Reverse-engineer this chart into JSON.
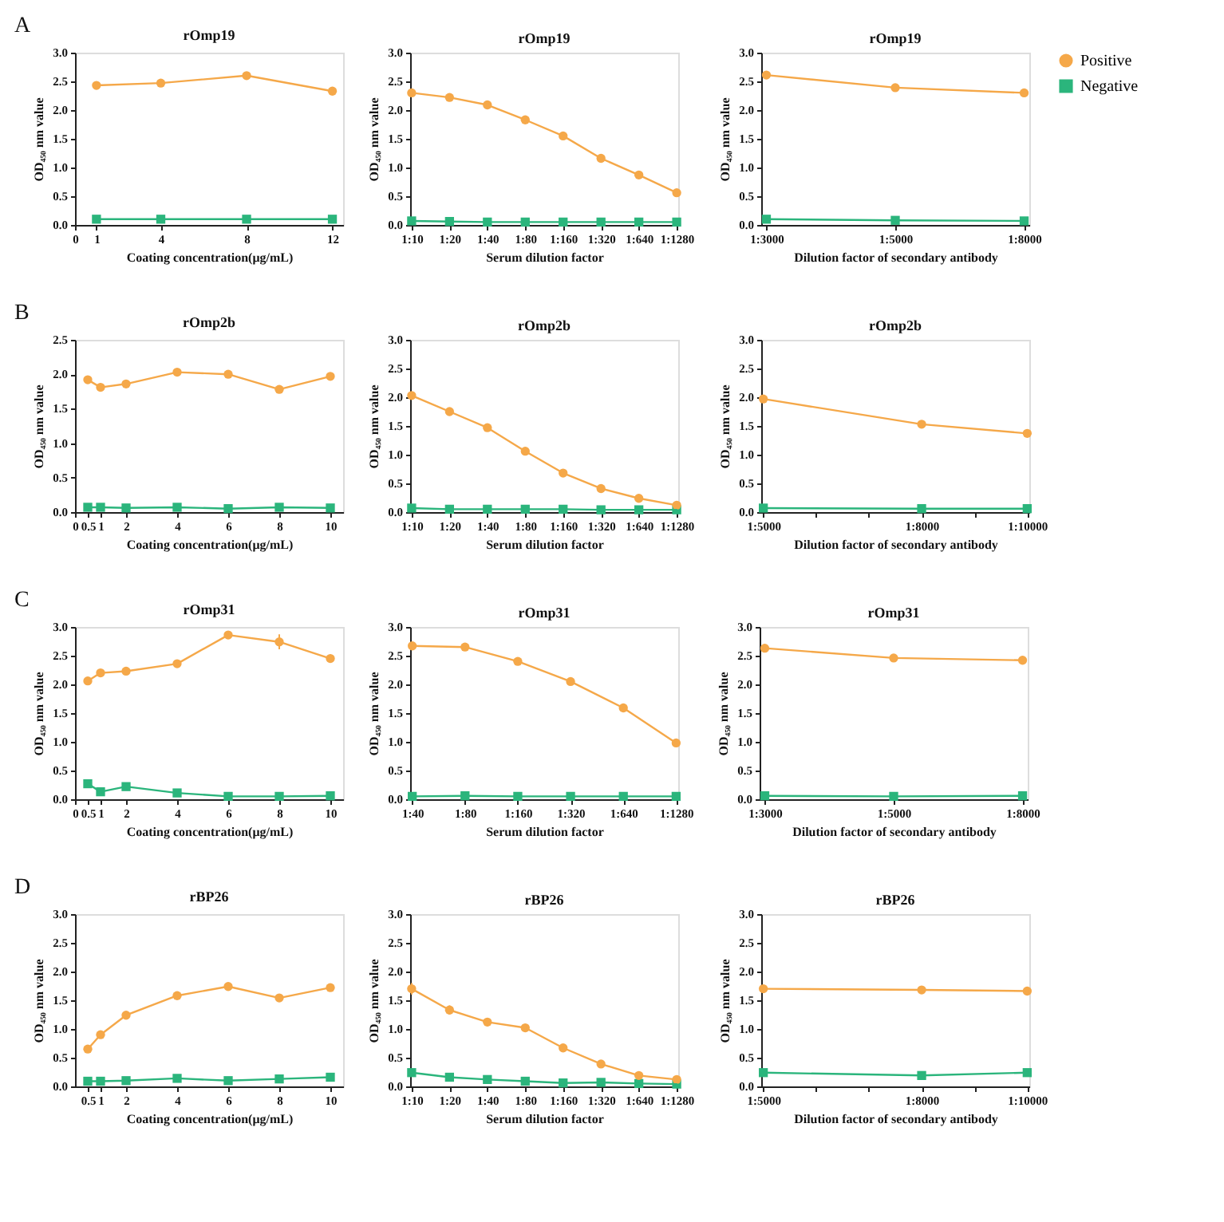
{
  "chart_data": [
    {
      "type": "line",
      "title": "rOmp19",
      "xlabel": "Coating concentration(μg/mL)",
      "ylabel": "OD₄₅₀ nm value",
      "annotations": [
        "A"
      ],
      "xlim": [
        0,
        12.5
      ],
      "xticks": [
        0,
        1,
        4,
        8,
        12
      ],
      "ylim": [
        0,
        3
      ],
      "yticks": [
        {
          "value": 0,
          "label": "0.0"
        },
        {
          "value": 0.5,
          "label": "0.5"
        },
        {
          "value": 1,
          "label": "1.0"
        },
        {
          "value": 1.5,
          "label": "1.5"
        },
        {
          "value": 2,
          "label": "2.0"
        },
        {
          "value": 2.5,
          "label": "2.5"
        },
        {
          "value": 3,
          "label": "3.0"
        }
      ],
      "x": [
        1,
        4,
        8,
        12
      ],
      "series": [
        {
          "color": "#f5a849",
          "marker": "circle",
          "values": [
            2.43,
            2.47,
            2.6,
            2.33
          ],
          "errors": [
            0.06,
            0.05,
            0.06,
            0.05
          ]
        },
        {
          "color": "#2bb57c",
          "marker": "square",
          "values": [
            0.1,
            0.1,
            0.1,
            0.1
          ]
        }
      ]
    },
    {
      "type": "line",
      "title": "rOmp19",
      "xlabel": "Serum dilution factor",
      "ylabel": "OD₄₅₀ nm value",
      "categories": [
        "1:10",
        "1:20",
        "1:40",
        "1:80",
        "1:160",
        "1:320",
        "1:640",
        "1:1280"
      ],
      "ylim": [
        0,
        3
      ],
      "yticks": [
        {
          "value": 0,
          "label": "0.0"
        },
        {
          "value": 0.5,
          "label": "0.5"
        },
        {
          "value": 1,
          "label": "1.0"
        },
        {
          "value": 1.5,
          "label": "1.5"
        },
        {
          "value": 2,
          "label": "2.0"
        },
        {
          "value": 2.5,
          "label": "2.5"
        },
        {
          "value": 3,
          "label": "3.0"
        }
      ],
      "series": [
        {
          "color": "#f5a849",
          "marker": "circle",
          "values": [
            2.3,
            2.22,
            2.09,
            1.83,
            1.55,
            1.16,
            0.87,
            0.56
          ],
          "errors": [
            0.05,
            0.05,
            0.04,
            null,
            null,
            null,
            null,
            null
          ]
        },
        {
          "color": "#2bb57c",
          "marker": "square",
          "values": [
            0.07,
            0.06,
            0.05,
            0.05,
            0.05,
            0.05,
            0.05,
            0.05
          ]
        }
      ]
    },
    {
      "type": "line",
      "title": "rOmp19",
      "xlabel": "Dilution factor of secondary antibody",
      "ylabel": "OD₄₅₀ nm value",
      "categories": [
        "1:3000",
        "1:5000",
        "1:8000"
      ],
      "legend": "right",
      "ylim": [
        0,
        3
      ],
      "yticks": [
        {
          "value": 0,
          "label": "0.0"
        },
        {
          "value": 0.5,
          "label": "0.5"
        },
        {
          "value": 1,
          "label": "1.0"
        },
        {
          "value": 1.5,
          "label": "1.5"
        },
        {
          "value": 2,
          "label": "2.0"
        },
        {
          "value": 2.5,
          "label": "2.5"
        },
        {
          "value": 3,
          "label": "3.0"
        }
      ],
      "series": [
        {
          "name": "Positive",
          "color": "#f5a849",
          "marker": "circle",
          "values": [
            2.61,
            2.39,
            2.3
          ],
          "errors": [
            0.06,
            0.05,
            0.05
          ]
        },
        {
          "name": "Negative",
          "color": "#2bb57c",
          "marker": "square",
          "values": [
            0.1,
            0.08,
            0.07
          ]
        }
      ]
    },
    {
      "type": "line",
      "title": "rOmp2b",
      "xlabel": "Coating concentration(μg/mL)",
      "ylabel": "OD₄₅₀ nm value",
      "annotations": [
        "B"
      ],
      "xlim": [
        0,
        10.5
      ],
      "xticks": [
        0,
        0.5,
        1,
        2,
        4,
        6,
        8,
        10
      ],
      "ylim": [
        0,
        2.5
      ],
      "yticks": [
        {
          "value": 0,
          "label": "0.0"
        },
        {
          "value": 0.5,
          "label": "0.5"
        },
        {
          "value": 1,
          "label": "1.0"
        },
        {
          "value": 1.5,
          "label": "1.5"
        },
        {
          "value": 2,
          "label": "2.0"
        },
        {
          "value": 2.5,
          "label": "2.5"
        }
      ],
      "x": [
        0.5,
        1,
        2,
        4,
        6,
        8,
        10
      ],
      "series": [
        {
          "color": "#f5a849",
          "marker": "circle",
          "values": [
            1.92,
            1.81,
            1.86,
            2.03,
            2.0,
            1.78,
            1.97
          ],
          "errors": [
            0.05,
            0.06,
            0.04,
            0.05,
            0.04,
            0.05,
            0.05
          ]
        },
        {
          "color": "#2bb57c",
          "marker": "square",
          "values": [
            0.07,
            0.07,
            0.06,
            0.07,
            0.05,
            0.07,
            0.06
          ]
        }
      ]
    },
    {
      "type": "line",
      "title": "rOmp2b",
      "xlabel": "Serum dilution factor",
      "ylabel": "OD₄₅₀ nm value",
      "categories": [
        "1:10",
        "1:20",
        "1:40",
        "1:80",
        "1:160",
        "1:320",
        "1:640",
        "1:1280"
      ],
      "ylim": [
        0,
        3
      ],
      "yticks": [
        {
          "value": 0,
          "label": "0.0"
        },
        {
          "value": 0.5,
          "label": "0.5"
        },
        {
          "value": 1,
          "label": "1.0"
        },
        {
          "value": 1.5,
          "label": "1.5"
        },
        {
          "value": 2,
          "label": "2.0"
        },
        {
          "value": 2.5,
          "label": "2.5"
        },
        {
          "value": 3,
          "label": "3.0"
        }
      ],
      "series": [
        {
          "color": "#f5a849",
          "marker": "circle",
          "values": [
            2.03,
            1.75,
            1.47,
            1.06,
            0.68,
            0.41,
            0.24,
            0.12
          ],
          "errors": [
            0.05,
            0.05,
            null,
            null,
            null,
            null,
            null,
            null
          ]
        },
        {
          "color": "#2bb57c",
          "marker": "square",
          "values": [
            0.07,
            0.05,
            0.05,
            0.05,
            0.05,
            0.04,
            0.04,
            0.04
          ]
        }
      ]
    },
    {
      "type": "line",
      "title": "rOmp2b",
      "xlabel": "Dilution factor of secondary antibody",
      "ylabel": "OD₄₅₀ nm value",
      "categories": [
        "1:5000",
        null,
        null,
        "1:8000",
        null,
        "1:10000"
      ],
      "ylim": [
        0,
        3
      ],
      "yticks": [
        {
          "value": 0,
          "label": "0.0"
        },
        {
          "value": 0.5,
          "label": "0.5"
        },
        {
          "value": 1,
          "label": "1.0"
        },
        {
          "value": 1.5,
          "label": "1.5"
        },
        {
          "value": 2,
          "label": "2.0"
        },
        {
          "value": 2.5,
          "label": "2.5"
        },
        {
          "value": 3,
          "label": "3.0"
        }
      ],
      "series": [
        {
          "color": "#f5a849",
          "marker": "circle",
          "values": [
            1.97,
            null,
            null,
            1.53,
            null,
            1.37
          ]
        },
        {
          "color": "#2bb57c",
          "marker": "square",
          "values": [
            0.07,
            null,
            null,
            0.06,
            null,
            0.06
          ]
        }
      ]
    },
    {
      "type": "line",
      "title": "rOmp31",
      "xlabel": "Coating concentration(μg/mL)",
      "ylabel": "OD₄₅₀ nm value",
      "annotations": [
        "C"
      ],
      "xlim": [
        0,
        10.5
      ],
      "xticks": [
        0,
        0.5,
        1,
        2,
        4,
        6,
        8,
        10
      ],
      "ylim": [
        0,
        3
      ],
      "yticks": [
        {
          "value": 0,
          "label": "0.0"
        },
        {
          "value": 0.5,
          "label": "0.5"
        },
        {
          "value": 1,
          "label": "1.0"
        },
        {
          "value": 1.5,
          "label": "1.5"
        },
        {
          "value": 2,
          "label": "2.0"
        },
        {
          "value": 2.5,
          "label": "2.5"
        },
        {
          "value": 3,
          "label": "3.0"
        }
      ],
      "x": [
        0.5,
        1,
        2,
        4,
        6,
        8,
        10
      ],
      "series": [
        {
          "color": "#f5a849",
          "marker": "circle",
          "values": [
            2.06,
            2.2,
            2.23,
            2.36,
            2.86,
            2.74,
            2.45
          ],
          "errors": [
            null,
            null,
            null,
            null,
            null,
            0.13,
            0.07
          ]
        },
        {
          "color": "#2bb57c",
          "marker": "square",
          "values": [
            0.27,
            0.13,
            0.22,
            0.11,
            0.05,
            0.05,
            0.06
          ]
        }
      ]
    },
    {
      "type": "line",
      "title": "rOmp31",
      "xlabel": "Serum dilution factor",
      "ylabel": "OD₄₅₀ nm value",
      "categories": [
        "1:40",
        "1:80",
        "1:160",
        "1:320",
        "1:640",
        "1:1280"
      ],
      "ylim": [
        0,
        3
      ],
      "yticks": [
        {
          "value": 0,
          "label": "0.0"
        },
        {
          "value": 0.5,
          "label": "0.5"
        },
        {
          "value": 1,
          "label": "1.0"
        },
        {
          "value": 1.5,
          "label": "1.5"
        },
        {
          "value": 2,
          "label": "2.0"
        },
        {
          "value": 2.5,
          "label": "2.5"
        },
        {
          "value": 3,
          "label": "3.0"
        }
      ],
      "series": [
        {
          "color": "#f5a849",
          "marker": "circle",
          "values": [
            2.67,
            2.65,
            2.4,
            2.05,
            1.59,
            0.98
          ],
          "errors": [
            0.07,
            null,
            null,
            null,
            null,
            null
          ]
        },
        {
          "color": "#2bb57c",
          "marker": "square",
          "values": [
            0.05,
            0.06,
            0.05,
            0.05,
            0.05,
            0.05
          ]
        }
      ]
    },
    {
      "type": "line",
      "title": "rOmp31",
      "xlabel": "Dilution factor of secondary antibody",
      "ylabel": "OD₄₅₀ nm value",
      "categories": [
        "1:3000",
        "1:5000",
        "1:8000"
      ],
      "ylim": [
        0,
        3
      ],
      "yticks": [
        {
          "value": 0,
          "label": "0.0"
        },
        {
          "value": 0.5,
          "label": "0.5"
        },
        {
          "value": 1,
          "label": "1.0"
        },
        {
          "value": 1.5,
          "label": "1.5"
        },
        {
          "value": 2,
          "label": "2.0"
        },
        {
          "value": 2.5,
          "label": "2.5"
        },
        {
          "value": 3,
          "label": "3.0"
        }
      ],
      "series": [
        {
          "color": "#f5a849",
          "marker": "circle",
          "values": [
            2.63,
            2.46,
            2.42
          ],
          "errors": [
            0.05,
            null,
            0.05
          ]
        },
        {
          "color": "#2bb57c",
          "marker": "square",
          "values": [
            0.06,
            0.05,
            0.06
          ]
        }
      ]
    },
    {
      "type": "line",
      "title": "rBP26",
      "xlabel": "Coating concentration(μg/mL)",
      "ylabel": "OD₄₅₀ nm value",
      "annotations": [
        "D"
      ],
      "xlim": [
        0,
        10.5
      ],
      "xticks": [
        0.5,
        1,
        2,
        4,
        6,
        8,
        10
      ],
      "ylim": [
        0,
        3
      ],
      "yticks": [
        {
          "value": 0,
          "label": "0.0"
        },
        {
          "value": 0.5,
          "label": "0.5"
        },
        {
          "value": 1,
          "label": "1.0"
        },
        {
          "value": 1.5,
          "label": "1.5"
        },
        {
          "value": 2,
          "label": "2.0"
        },
        {
          "value": 2.5,
          "label": "2.5"
        },
        {
          "value": 3,
          "label": "3.0"
        }
      ],
      "x": [
        0.5,
        1,
        2,
        4,
        6,
        8,
        10
      ],
      "series": [
        {
          "color": "#f5a849",
          "marker": "circle",
          "values": [
            0.65,
            0.9,
            1.24,
            1.58,
            1.74,
            1.54,
            1.72
          ]
        },
        {
          "color": "#2bb57c",
          "marker": "square",
          "values": [
            0.09,
            0.09,
            0.1,
            0.14,
            0.1,
            0.13,
            0.16
          ]
        }
      ]
    },
    {
      "type": "line",
      "title": "rBP26",
      "xlabel": "Serum dilution factor",
      "ylabel": "OD₄₅₀ nm value",
      "categories": [
        "1:10",
        "1:20",
        "1:40",
        "1:80",
        "1:160",
        "1:320",
        "1:640",
        "1:1280"
      ],
      "ylim": [
        0,
        3
      ],
      "yticks": [
        {
          "value": 0,
          "label": "0.0"
        },
        {
          "value": 0.5,
          "label": "0.5"
        },
        {
          "value": 1,
          "label": "1.0"
        },
        {
          "value": 1.5,
          "label": "1.5"
        },
        {
          "value": 2,
          "label": "2.0"
        },
        {
          "value": 2.5,
          "label": "2.5"
        },
        {
          "value": 3,
          "label": "3.0"
        }
      ],
      "series": [
        {
          "color": "#f5a849",
          "marker": "circle",
          "values": [
            1.7,
            1.33,
            1.12,
            1.02,
            0.67,
            0.39,
            0.19,
            0.12
          ],
          "errors": [
            0.1,
            0.08,
            0.07,
            0.06,
            null,
            null,
            null,
            0.04
          ]
        },
        {
          "color": "#2bb57c",
          "marker": "square",
          "values": [
            0.24,
            0.16,
            0.12,
            0.09,
            0.06,
            0.07,
            0.05,
            0.04
          ]
        }
      ]
    },
    {
      "type": "line",
      "title": "rBP26",
      "xlabel": "Dilution factor of secondary antibody",
      "ylabel": "OD₄₅₀ nm value",
      "categories": [
        "1:5000",
        null,
        null,
        "1:8000",
        null,
        "1:10000"
      ],
      "ylim": [
        0,
        3
      ],
      "yticks": [
        {
          "value": 0,
          "label": "0.0"
        },
        {
          "value": 0.5,
          "label": "0.5"
        },
        {
          "value": 1,
          "label": "1.0"
        },
        {
          "value": 1.5,
          "label": "1.5"
        },
        {
          "value": 2,
          "label": "2.0"
        },
        {
          "value": 2.5,
          "label": "2.5"
        },
        {
          "value": 3,
          "label": "3.0"
        }
      ],
      "series": [
        {
          "color": "#f5a849",
          "marker": "circle",
          "values": [
            1.7,
            null,
            null,
            1.68,
            null,
            1.66
          ],
          "errors": [
            0.05,
            null,
            null,
            0.06,
            null,
            0.05
          ]
        },
        {
          "color": "#2bb57c",
          "marker": "square",
          "values": [
            0.24,
            null,
            null,
            0.19,
            null,
            0.24
          ]
        }
      ]
    }
  ]
}
